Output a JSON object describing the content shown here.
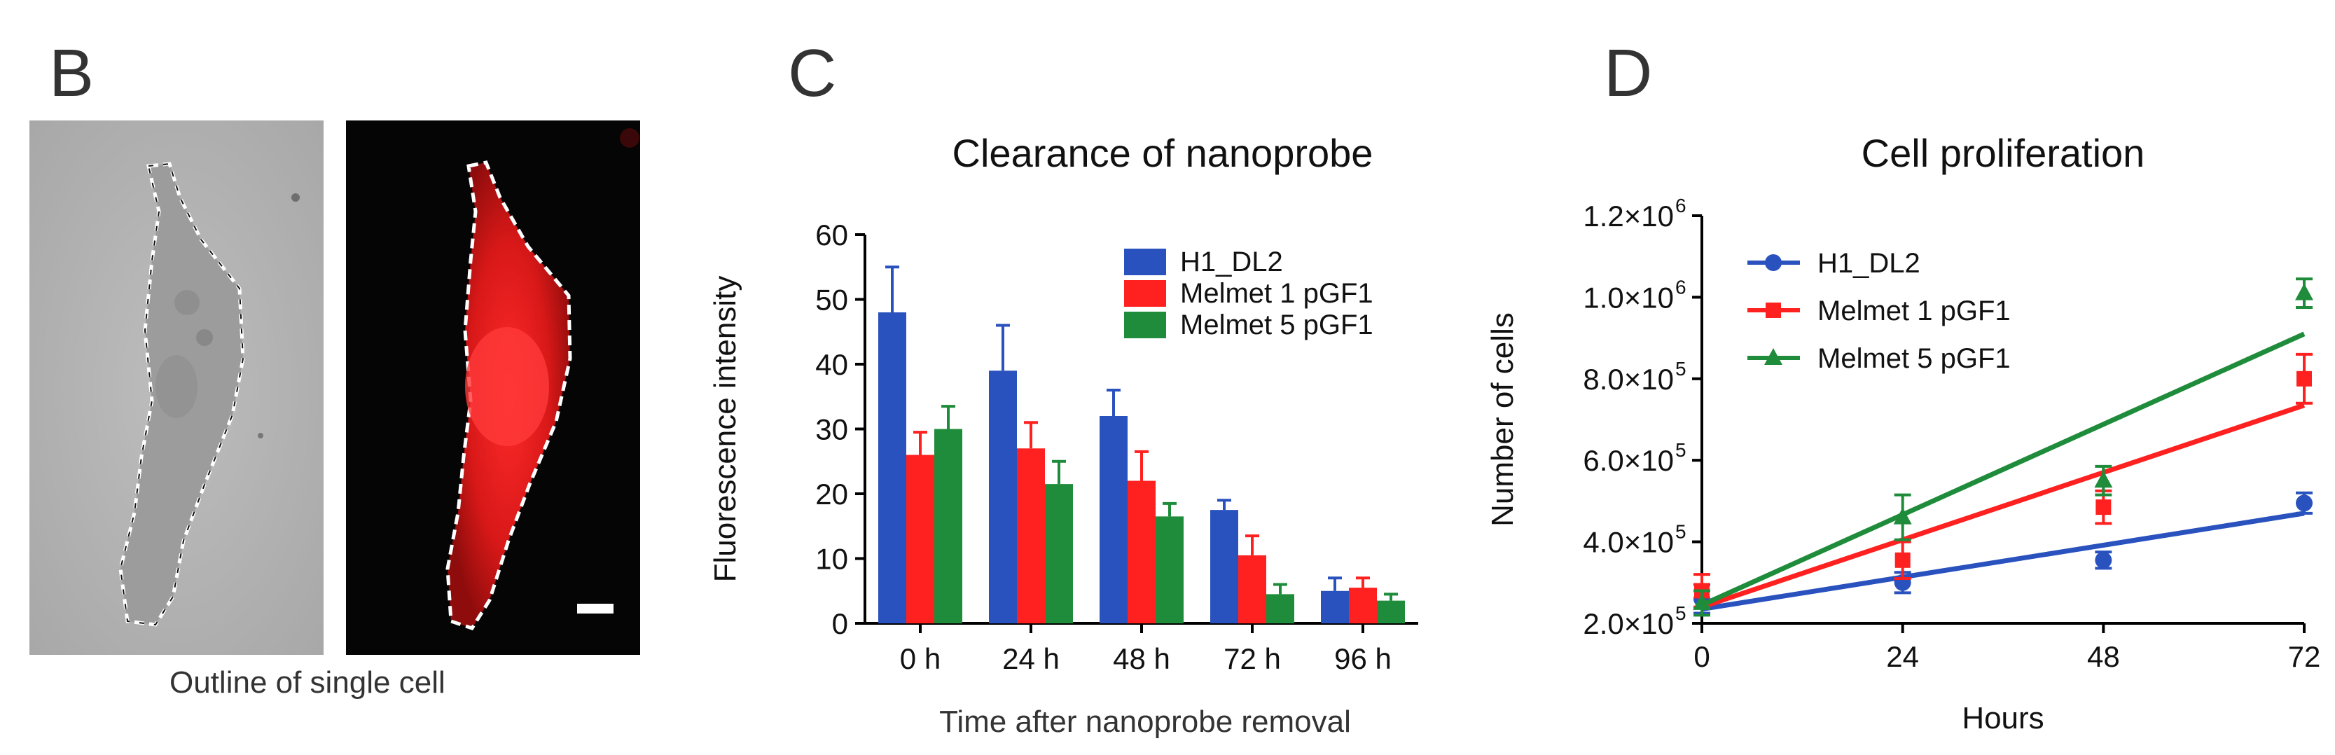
{
  "panels": {
    "B": {
      "letter": "B",
      "caption": "Outline of single cell"
    },
    "C": {
      "letter": "C"
    },
    "D": {
      "letter": "D"
    }
  },
  "chart_data": [
    {
      "type": "bar",
      "title": "Clearance of nanoprobe",
      "xlabel": "Time after nanoprobe removal",
      "ylabel": "Fluorescence intensity",
      "ylim": [
        0,
        60
      ],
      "yticks": [
        "0",
        "10",
        "20",
        "30",
        "40",
        "50",
        "60"
      ],
      "categories": [
        "0 h",
        "24 h",
        "48 h",
        "72 h",
        "96 h"
      ],
      "legend_position": "top-right",
      "series": [
        {
          "name": "H1_DL2",
          "color": "#2a52be",
          "values": [
            48,
            39,
            32,
            17.5,
            5
          ],
          "errors": [
            7,
            7,
            4,
            1.5,
            2
          ]
        },
        {
          "name": "Melmet 1 pGF1",
          "color": "#ff2020",
          "values": [
            26,
            27,
            22,
            10.5,
            5.5
          ],
          "errors": [
            3.5,
            4,
            4.5,
            3,
            1.5
          ]
        },
        {
          "name": "Melmet 5 pGF1",
          "color": "#1e8c3a",
          "values": [
            30,
            21.5,
            16.5,
            4.5,
            3.5
          ],
          "errors": [
            3.5,
            3.5,
            2,
            1.5,
            1
          ]
        }
      ]
    },
    {
      "type": "scatter",
      "title": "Cell proliferation",
      "xlabel": "Hours",
      "ylabel": "Number of cells",
      "xlim": [
        0,
        72
      ],
      "ylim": [
        200000,
        1200000
      ],
      "xticks": [
        "0",
        "24",
        "48",
        "72"
      ],
      "yticks": [
        "2.0×10",
        "4.0×10",
        "6.0×10",
        "8.0×10",
        "1.0×10",
        "1.2×10"
      ],
      "ytick_exponents": [
        "5",
        "5",
        "5",
        "5",
        "6",
        "6"
      ],
      "legend_position": "top-left",
      "series": [
        {
          "name": "H1_DL2",
          "color": "#2a52be",
          "marker": "circle",
          "x": [
            0,
            24,
            48,
            72
          ],
          "y": [
            260000,
            300000,
            355000,
            495000
          ],
          "errors": [
            35000,
            25000,
            20000,
            25000
          ],
          "fit": [
            [
              0,
              235000
            ],
            [
              72,
              470000
            ]
          ]
        },
        {
          "name": "Melmet 1 pGF1",
          "color": "#ff2020",
          "marker": "square",
          "x": [
            0,
            24,
            48,
            72
          ],
          "y": [
            280000,
            355000,
            485000,
            800000
          ],
          "errors": [
            40000,
            45000,
            40000,
            60000
          ],
          "fit": [
            [
              0,
              240000
            ],
            [
              72,
              735000
            ]
          ]
        },
        {
          "name": "Melmet 5 pGF1",
          "color": "#1e8c3a",
          "marker": "triangle",
          "x": [
            0,
            24,
            48,
            72
          ],
          "y": [
            250000,
            460000,
            550000,
            1010000
          ],
          "errors": [
            30000,
            55000,
            35000,
            35000
          ],
          "fit": [
            [
              0,
              245000
            ],
            [
              72,
              910000
            ]
          ]
        }
      ]
    }
  ]
}
